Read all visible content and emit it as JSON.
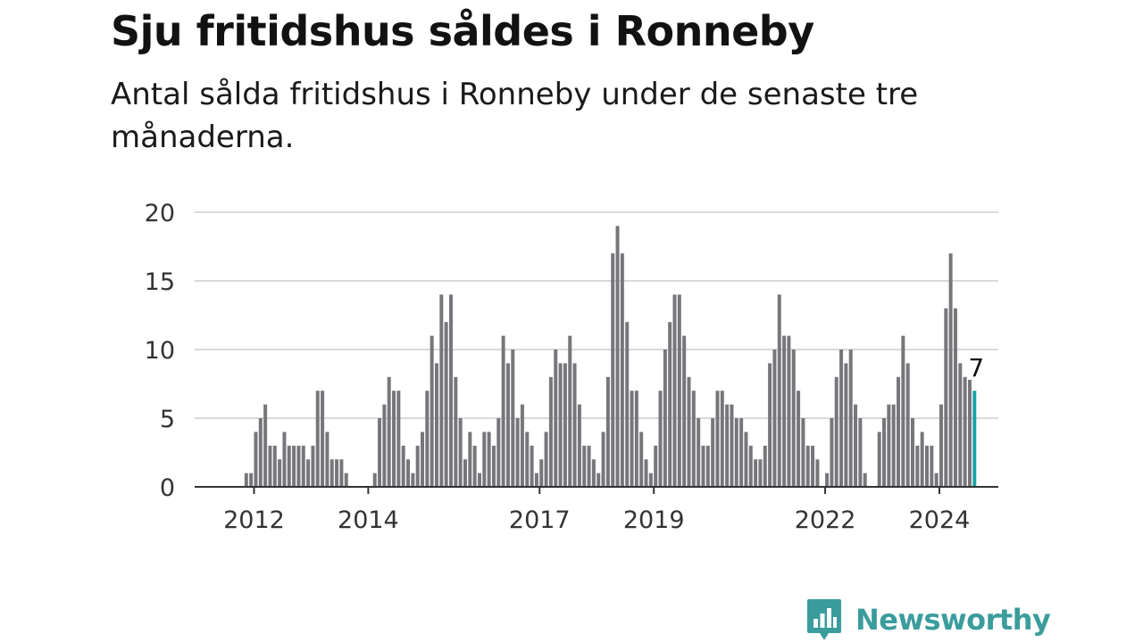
{
  "header": {
    "title": "Sju fritidshus såldes i Ronneby",
    "subtitle": "Antal sålda fritidshus i Ronneby under de senaste tre månaderna."
  },
  "brand": {
    "name": "Newsworthy",
    "color": "#3a9c9c"
  },
  "colors": {
    "bar": "#77767b",
    "highlight": "#1aa3a3",
    "grid": "#d9d9d9",
    "axis": "#333333"
  },
  "chart_data": {
    "type": "bar",
    "title": "",
    "xlabel": "",
    "ylabel": "",
    "ylim": [
      0,
      20
    ],
    "yticks": [
      0,
      5,
      10,
      15,
      20
    ],
    "xtick_labels": [
      "2012",
      "2014",
      "2017",
      "2019",
      "2022",
      "2024"
    ],
    "grid": true,
    "highlight_label": "7",
    "values": [
      0,
      0,
      0,
      0,
      0,
      0,
      0,
      0,
      0,
      0,
      1,
      1,
      4,
      5,
      6,
      3,
      3,
      2,
      4,
      3,
      3,
      3,
      3,
      2,
      3,
      7,
      7,
      4,
      2,
      2,
      2,
      1,
      0,
      0,
      0,
      0,
      0,
      1,
      5,
      6,
      8,
      7,
      7,
      3,
      2,
      1,
      3,
      4,
      7,
      11,
      9,
      14,
      12,
      14,
      8,
      5,
      2,
      4,
      3,
      1,
      4,
      4,
      3,
      5,
      11,
      9,
      10,
      5,
      6,
      4,
      3,
      1,
      2,
      4,
      8,
      10,
      9,
      9,
      11,
      9,
      6,
      3,
      3,
      2,
      1,
      4,
      8,
      17,
      19,
      17,
      12,
      7,
      7,
      4,
      2,
      1,
      3,
      7,
      10,
      12,
      14,
      14,
      11,
      8,
      7,
      5,
      3,
      3,
      5,
      7,
      7,
      6,
      6,
      5,
      5,
      4,
      3,
      2,
      2,
      3,
      9,
      10,
      14,
      11,
      11,
      10,
      7,
      5,
      3,
      3,
      2,
      0,
      1,
      5,
      8,
      10,
      9,
      10,
      6,
      5,
      1,
      0,
      0,
      4,
      5,
      6,
      6,
      8,
      11,
      9,
      5,
      3,
      4,
      3,
      3,
      1,
      6,
      13,
      17,
      13,
      9,
      8,
      7.8,
      7
    ]
  }
}
